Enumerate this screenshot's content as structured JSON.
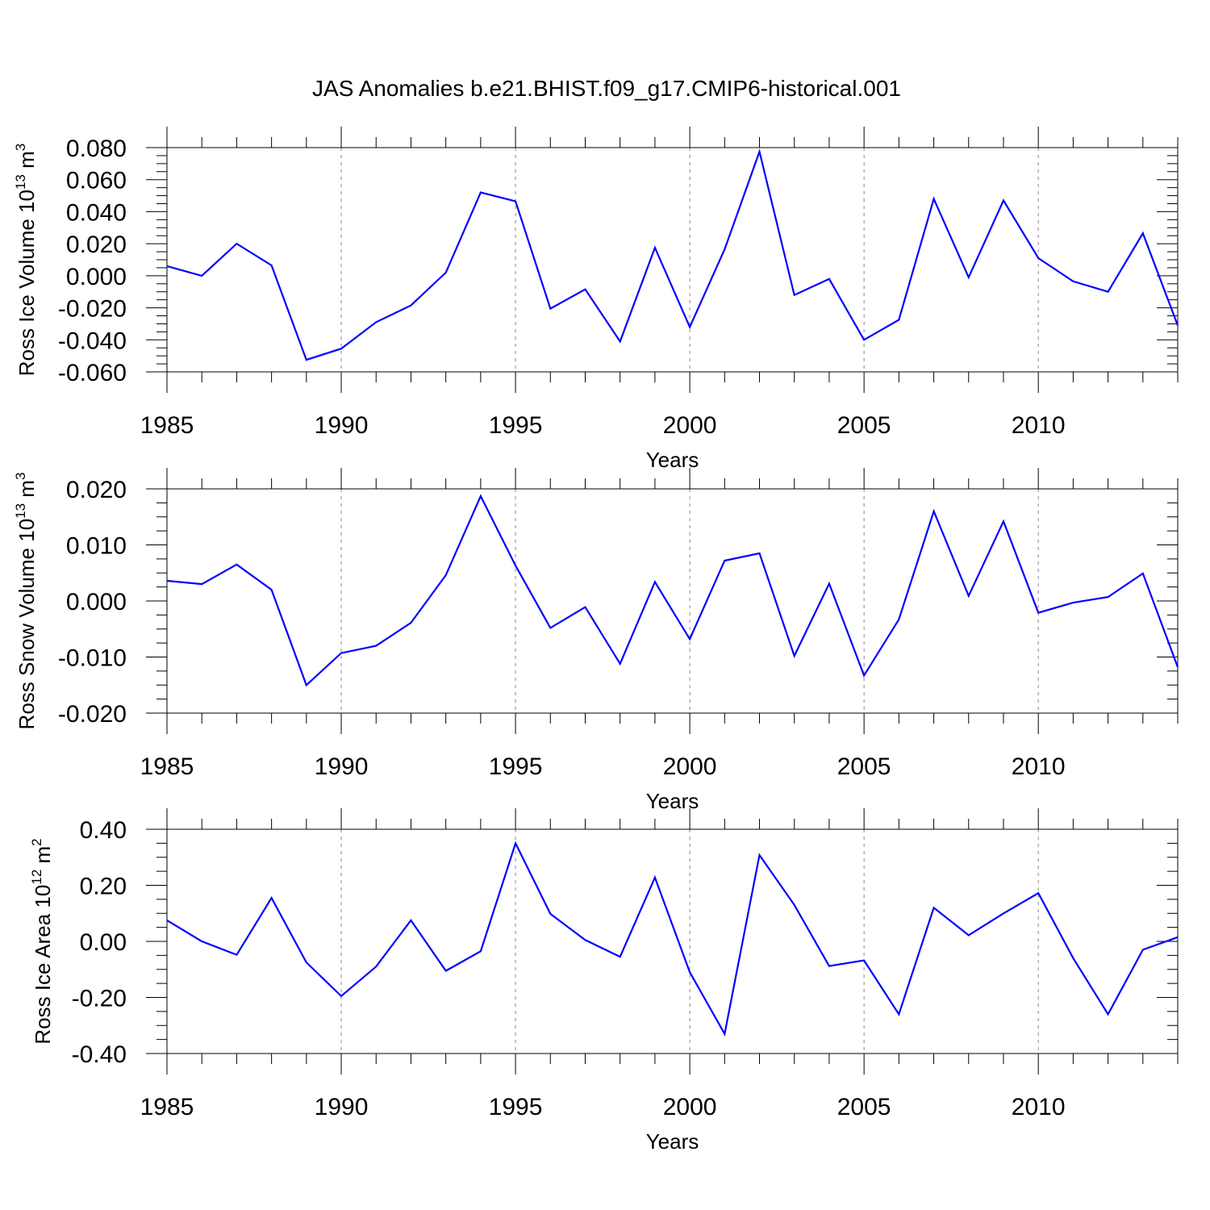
{
  "title": "JAS Anomalies b.e21.BHIST.f09_g17.CMIP6-historical.001",
  "colors": {
    "series": "#0000ff",
    "grid": "#888888"
  },
  "chart_data": [
    {
      "type": "line",
      "ylabel": "Ross Ice Volume 10",
      "ylabel_exp": "13",
      "ylabel_unit": " m",
      "ylabel_unit_exp": "3",
      "xlabel": "Years",
      "xlim": [
        1985,
        2014
      ],
      "ylim": [
        -0.06,
        0.08
      ],
      "xticks": [
        "1985",
        "1990",
        "1995",
        "2000",
        "2005",
        "2010"
      ],
      "yticks": [
        "0.080",
        "0.060",
        "0.040",
        "0.020",
        "0.000",
        "-0.020",
        "-0.040",
        "-0.060"
      ],
      "x": [
        1985,
        1986,
        1987,
        1988,
        1989,
        1990,
        1991,
        1992,
        1993,
        1994,
        1995,
        1996,
        1997,
        1998,
        1999,
        2000,
        2001,
        2002,
        2003,
        2004,
        2005,
        2006,
        2007,
        2008,
        2009,
        2010,
        2011,
        2012,
        2013,
        2014
      ],
      "values": [
        0.006,
        0.0,
        0.02,
        0.0065,
        -0.0525,
        -0.0455,
        -0.029,
        -0.0185,
        0.002,
        0.052,
        0.0465,
        -0.0205,
        -0.0085,
        -0.041,
        0.0175,
        -0.032,
        0.0165,
        0.0775,
        -0.012,
        -0.002,
        -0.04,
        -0.0275,
        0.048,
        -0.001,
        0.047,
        0.011,
        -0.0035,
        -0.01,
        0.0265,
        -0.031
      ],
      "grid": "vertical dashed at major ticks"
    },
    {
      "type": "line",
      "ylabel": "Ross Snow Volume 10",
      "ylabel_exp": "13",
      "ylabel_unit": " m",
      "ylabel_unit_exp": "3",
      "xlabel": "Years",
      "xlim": [
        1985,
        2014
      ],
      "ylim": [
        -0.02,
        0.02
      ],
      "xticks": [
        "1985",
        "1990",
        "1995",
        "2000",
        "2005",
        "2010"
      ],
      "yticks": [
        "0.020",
        "0.010",
        "0.000",
        "-0.010",
        "-0.020"
      ],
      "x": [
        1985,
        1986,
        1987,
        1988,
        1989,
        1990,
        1991,
        1992,
        1993,
        1994,
        1995,
        1996,
        1997,
        1998,
        1999,
        2000,
        2001,
        2002,
        2003,
        2004,
        2005,
        2006,
        2007,
        2008,
        2009,
        2010,
        2011,
        2012,
        2013,
        2014
      ],
      "values": [
        0.0036,
        0.003,
        0.0065,
        0.002,
        -0.015,
        -0.0093,
        -0.008,
        -0.0039,
        0.0046,
        0.0187,
        0.0063,
        -0.0048,
        -0.0011,
        -0.0112,
        0.0034,
        -0.0068,
        0.0072,
        0.0085,
        -0.0098,
        0.0031,
        -0.0133,
        -0.0033,
        0.016,
        0.0009,
        0.0142,
        -0.0021,
        -0.0003,
        0.0007,
        0.0049,
        -0.0118
      ],
      "grid": "vertical dashed at major ticks"
    },
    {
      "type": "line",
      "ylabel": "Ross Ice Area 10",
      "ylabel_exp": "12",
      "ylabel_unit": " m",
      "ylabel_unit_exp": "2",
      "xlabel": "Years",
      "xlim": [
        1985,
        2014
      ],
      "ylim": [
        -0.4,
        0.4
      ],
      "xticks": [
        "1985",
        "1990",
        "1995",
        "2000",
        "2005",
        "2010"
      ],
      "yticks": [
        "0.40",
        "0.20",
        "0.00",
        "-0.20",
        "-0.40"
      ],
      "x": [
        1985,
        1986,
        1987,
        1988,
        1989,
        1990,
        1991,
        1992,
        1993,
        1994,
        1995,
        1996,
        1997,
        1998,
        1999,
        2000,
        2001,
        2002,
        2003,
        2004,
        2005,
        2006,
        2007,
        2008,
        2009,
        2010,
        2011,
        2012,
        2013,
        2014
      ],
      "values": [
        0.075,
        0.0,
        -0.048,
        0.155,
        -0.075,
        -0.195,
        -0.09,
        0.075,
        -0.105,
        -0.035,
        0.35,
        0.098,
        0.005,
        -0.055,
        0.228,
        -0.11,
        -0.33,
        0.308,
        0.13,
        -0.088,
        -0.068,
        -0.26,
        0.12,
        0.022,
        0.1,
        0.172,
        -0.06,
        -0.26,
        -0.03,
        0.015
      ],
      "grid": "vertical dashed at major ticks"
    }
  ]
}
